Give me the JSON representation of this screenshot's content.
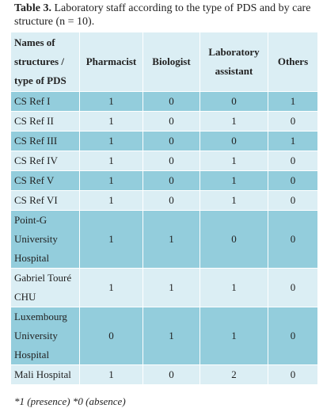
{
  "title": {
    "label": "Table 3.",
    "text": "Laboratory staff according to the type of PDS and by care structure (n = 10)."
  },
  "table": {
    "header": [
      "Names of structures / type of PDS",
      "Pharmacist",
      "Biologist",
      "Laboratory assistant",
      "Others"
    ],
    "rows": [
      [
        "CS Ref I",
        1,
        0,
        0,
        1
      ],
      [
        "CS Ref II",
        1,
        0,
        1,
        0
      ],
      [
        "CS Ref III",
        1,
        0,
        0,
        1
      ],
      [
        "CS Ref IV",
        1,
        0,
        1,
        0
      ],
      [
        "CS Ref V",
        1,
        0,
        1,
        0
      ],
      [
        "CS Ref VI",
        1,
        0,
        1,
        0
      ],
      [
        "Point-G University Hospital",
        1,
        1,
        0,
        0
      ],
      [
        "Gabriel Touré CHU",
        1,
        1,
        1,
        0
      ],
      [
        "Luxembourg University Hospital",
        0,
        1,
        1,
        0
      ],
      [
        "Mali Hospital",
        1,
        0,
        2,
        0
      ]
    ]
  },
  "footnote": "*1 (presence) *0 (absence)"
}
